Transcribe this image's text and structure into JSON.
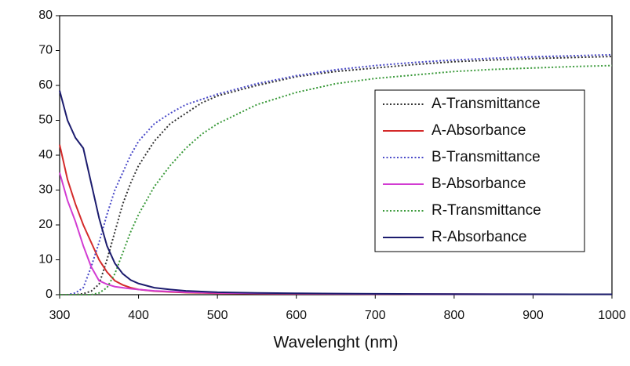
{
  "chart_data": {
    "type": "line",
    "x_label": "Wavelenght (nm)",
    "x": [
      300,
      310,
      320,
      330,
      340,
      350,
      360,
      370,
      380,
      390,
      400,
      420,
      440,
      460,
      480,
      500,
      550,
      600,
      650,
      700,
      750,
      800,
      850,
      900,
      950,
      1000
    ],
    "series": [
      {
        "name": "A-Transmittance",
        "color": "#333333",
        "line_style": "dotted",
        "values": [
          0,
          0,
          0,
          0.3,
          1,
          3,
          10,
          18,
          26,
          32,
          37,
          44,
          49,
          52,
          55,
          57,
          60,
          62.5,
          64,
          65,
          66,
          66.8,
          67.3,
          67.7,
          68,
          68.3
        ]
      },
      {
        "name": "A-Absorbance",
        "color": "#d42a2a",
        "line_style": "solid",
        "values": [
          43,
          33,
          26,
          20,
          15,
          10,
          6.5,
          4,
          2.8,
          2,
          1.5,
          1,
          0.8,
          0.6,
          0.5,
          0.4,
          0.3,
          0.25,
          0.2,
          0.18,
          0.15,
          0.13,
          0.12,
          0.11,
          0.1,
          0.1
        ]
      },
      {
        "name": "B-Transmittance",
        "color": "#4a4ac8",
        "line_style": "dotted",
        "values": [
          0,
          0,
          0.5,
          2,
          8,
          15,
          23,
          30,
          35,
          40,
          44,
          49,
          52,
          54.5,
          56,
          57.5,
          60.5,
          62.8,
          64.5,
          65.7,
          66.6,
          67.3,
          67.8,
          68.2,
          68.5,
          68.8
        ]
      },
      {
        "name": "B-Absorbance",
        "color": "#d23cd2",
        "line_style": "solid",
        "values": [
          35,
          27,
          21,
          14,
          8,
          4,
          3,
          2.3,
          2,
          1.7,
          1.5,
          1.1,
          0.9,
          0.7,
          0.6,
          0.5,
          0.4,
          0.3,
          0.25,
          0.2,
          0.18,
          0.15,
          0.13,
          0.12,
          0.1,
          0.1
        ]
      },
      {
        "name": "R-Transmittance",
        "color": "#3a9a3a",
        "line_style": "dotted",
        "values": [
          0,
          0,
          0,
          0,
          0,
          0.5,
          2,
          6,
          12,
          18,
          23,
          31,
          37,
          42,
          46,
          49,
          54.5,
          58,
          60.5,
          62,
          63,
          64,
          64.6,
          65,
          65.4,
          65.7
        ]
      },
      {
        "name": "R-Absorbance",
        "color": "#1c1c6e",
        "line_style": "solid",
        "values": [
          58.5,
          50,
          45,
          42,
          32,
          22,
          14,
          9,
          6,
          4.2,
          3.2,
          2,
          1.5,
          1.1,
          0.9,
          0.7,
          0.5,
          0.4,
          0.3,
          0.25,
          0.2,
          0.18,
          0.15,
          0.13,
          0.12,
          0.1
        ]
      }
    ],
    "xlim": [
      300,
      1000
    ],
    "xticks": [
      300,
      400,
      500,
      600,
      700,
      800,
      900,
      1000
    ],
    "ylim": [
      0,
      80
    ],
    "yticks": [
      0,
      10,
      20,
      30,
      40,
      50,
      60,
      70,
      80
    ],
    "legend": "right"
  }
}
